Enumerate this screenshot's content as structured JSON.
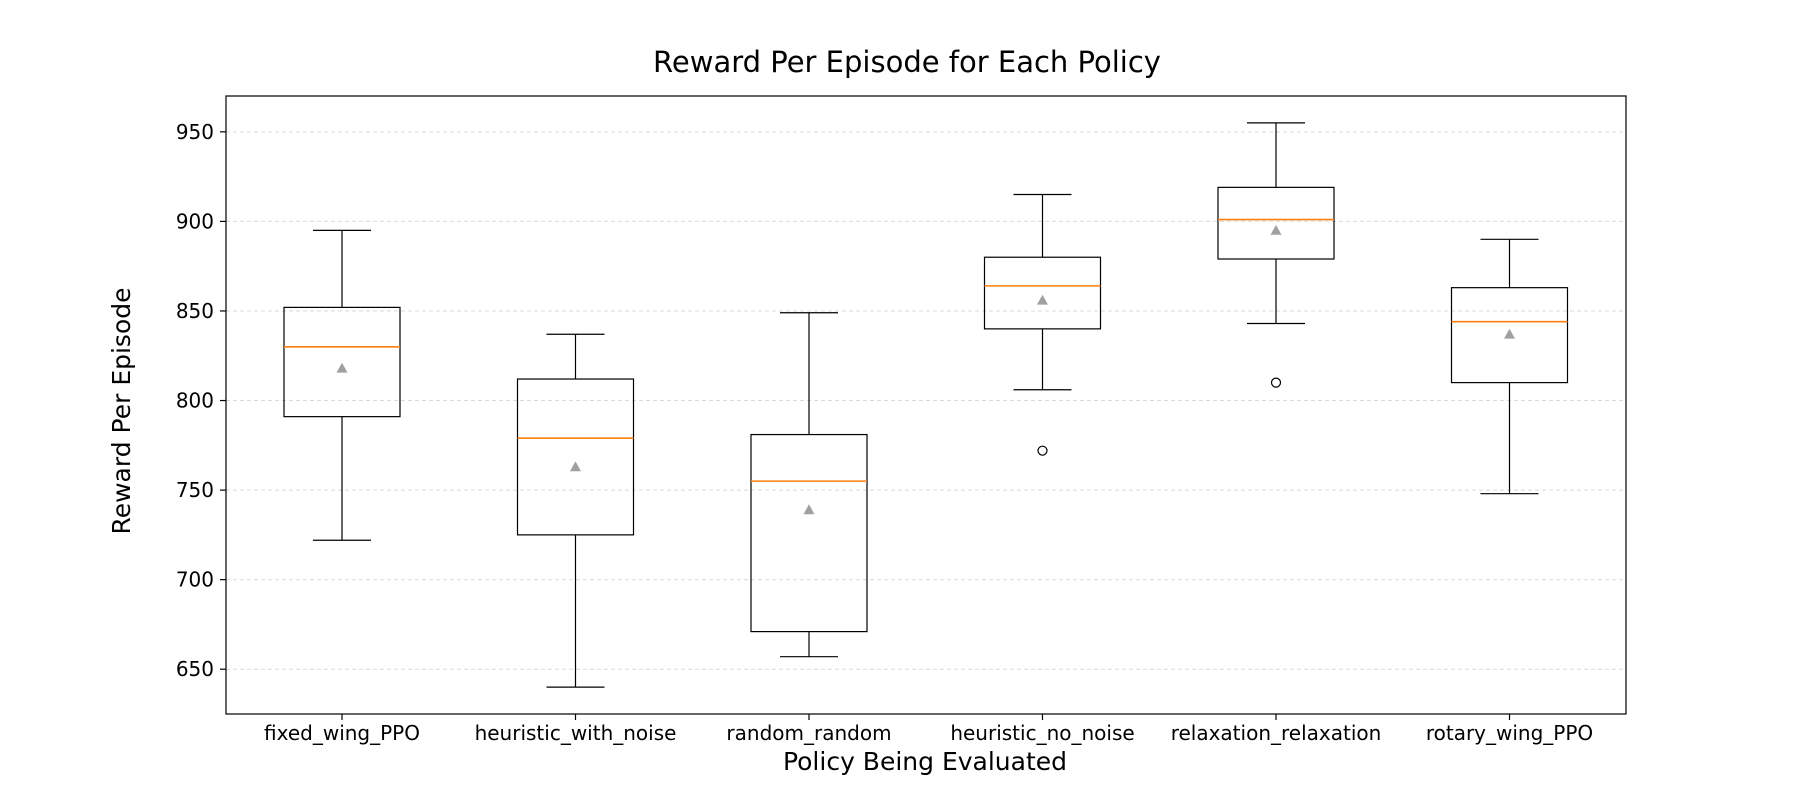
{
  "chart_data": {
    "type": "box",
    "title": "Reward Per Episode for Each Policy",
    "xlabel": "Policy Being Evaluated",
    "ylabel": "Reward Per Episode",
    "ylim": [
      625,
      970
    ],
    "yticks": [
      650,
      700,
      750,
      800,
      850,
      900,
      950
    ],
    "grid": "horizontal dashed",
    "colors": {
      "median": "#ff7f0e",
      "mean": "#a0a0a0",
      "box": "#000000",
      "grid": "#d9d9d9"
    },
    "categories": [
      "fixed_wing_PPO",
      "heuristic_with_noise",
      "random_random",
      "heuristic_no_noise",
      "relaxation_relaxation",
      "rotary_wing_PPO"
    ],
    "boxes": [
      {
        "whisker_low": 722,
        "q1": 791,
        "median": 830,
        "q3": 852,
        "whisker_high": 895,
        "mean": 818,
        "outliers": []
      },
      {
        "whisker_low": 640,
        "q1": 725,
        "median": 779,
        "q3": 812,
        "whisker_high": 837,
        "mean": 763,
        "outliers": []
      },
      {
        "whisker_low": 657,
        "q1": 671,
        "median": 755,
        "q3": 781,
        "whisker_high": 849,
        "mean": 739,
        "outliers": []
      },
      {
        "whisker_low": 806,
        "q1": 840,
        "median": 864,
        "q3": 880,
        "whisker_high": 915,
        "mean": 856,
        "outliers": [
          772
        ]
      },
      {
        "whisker_low": 843,
        "q1": 879,
        "median": 901,
        "q3": 919,
        "whisker_high": 955,
        "mean": 895,
        "outliers": [
          810
        ]
      },
      {
        "whisker_low": 748,
        "q1": 810,
        "median": 844,
        "q3": 863,
        "whisker_high": 890,
        "mean": 837,
        "outliers": []
      }
    ]
  }
}
